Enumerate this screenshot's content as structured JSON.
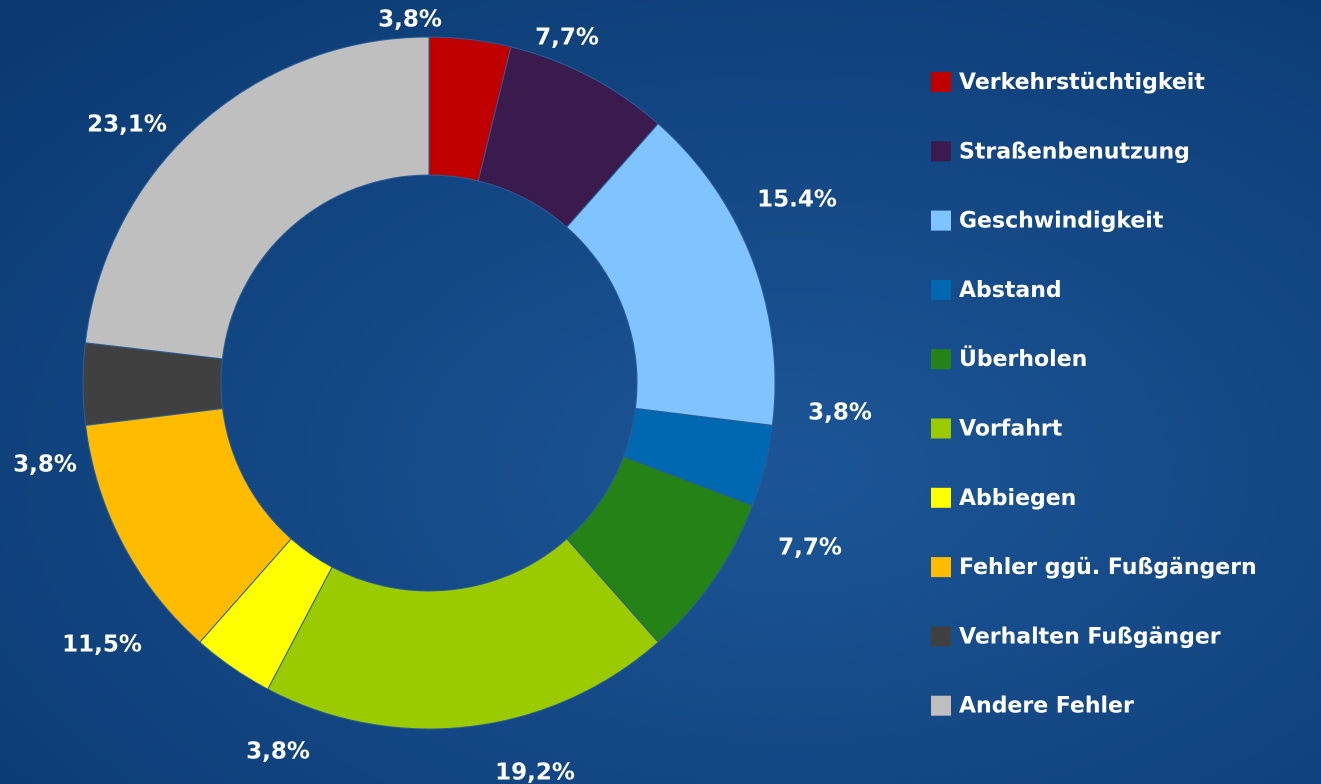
{
  "chart_data": {
    "type": "donut",
    "categories": [
      "Verkehrstüchtigkeit",
      "Straßenbenutzung",
      "Geschwindigkeit",
      "Abstand",
      "Überholen",
      "Vorfahrt",
      "Abbiegen",
      "Fehler ggü. Fußgängern",
      "Verhalten Fußgänger",
      "Andere Fehler"
    ],
    "values": [
      3.8,
      7.7,
      15.4,
      3.8,
      7.7,
      19.2,
      3.8,
      11.5,
      3.8,
      23.1
    ],
    "value_labels": [
      "3,8%",
      "7,7%",
      "15.4%",
      "3,8%",
      "7,7%",
      "19,2%",
      "3,8%",
      "11,5%",
      "3,8%",
      "23,1%"
    ],
    "colors": [
      "#c00000",
      "#3b1a4e",
      "#80c4ff",
      "#0067b1",
      "#248217",
      "#9acb00",
      "#ffff00",
      "#ffbb00",
      "#404040",
      "#bfbfbf"
    ],
    "legend": "right"
  }
}
